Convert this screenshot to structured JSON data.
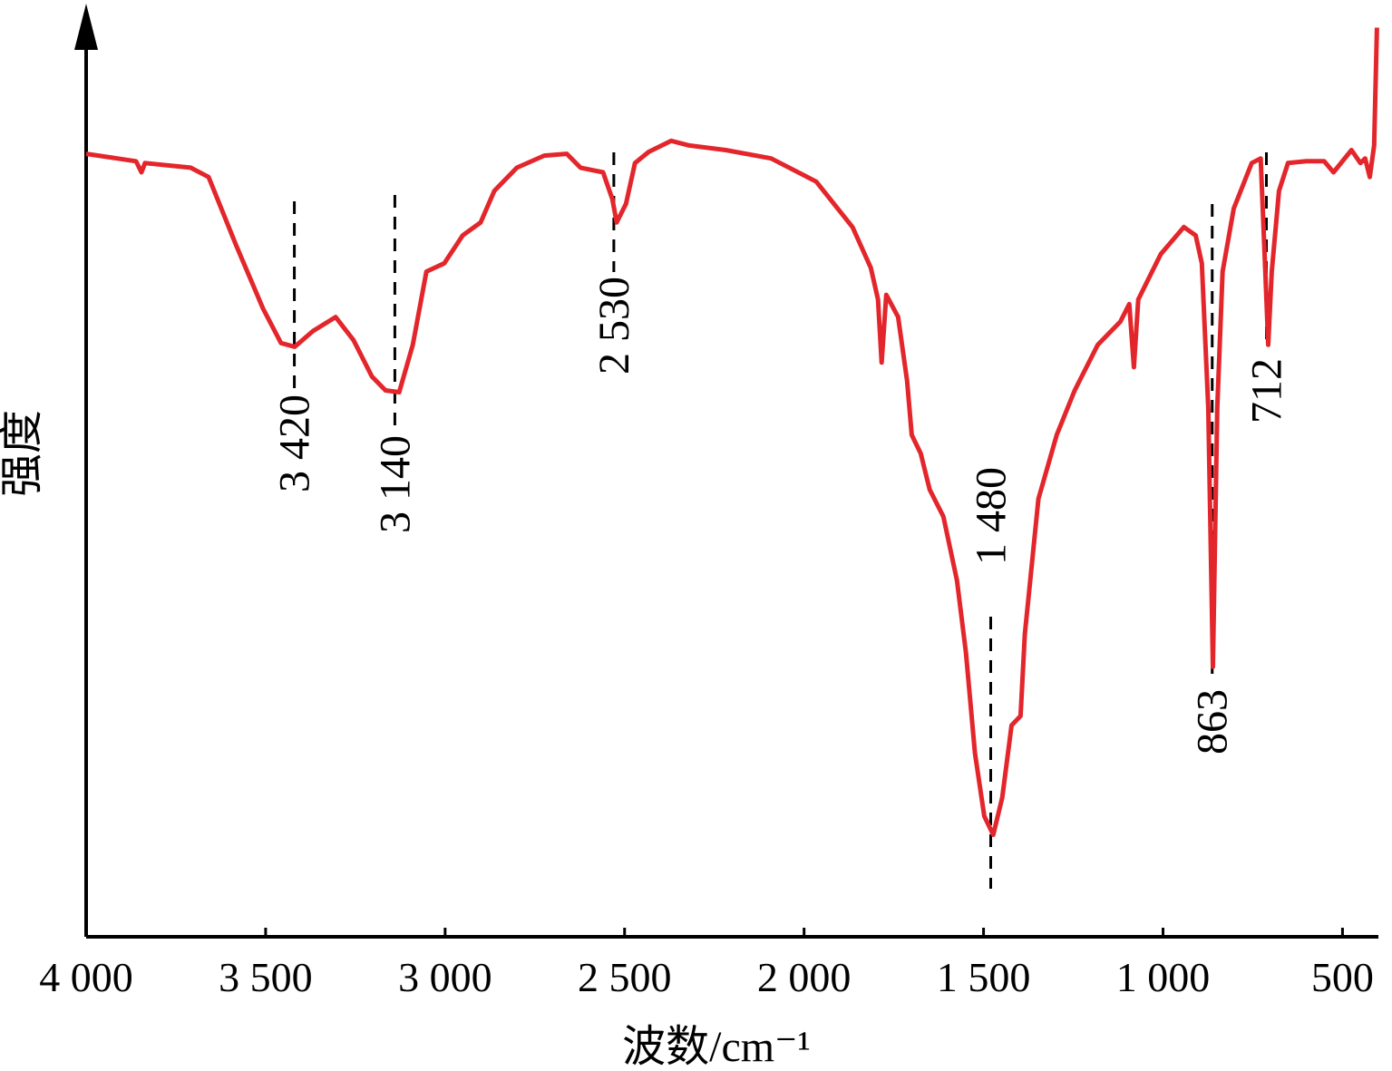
{
  "chart_data": {
    "type": "line",
    "xlabel": "波数/cm⁻¹",
    "ylabel": "强度",
    "xlim": [
      4000,
      400
    ],
    "ylim": [
      0,
      100
    ],
    "xticks": [
      {
        "value": 4000,
        "label": "4 000"
      },
      {
        "value": 3500,
        "label": "3 500"
      },
      {
        "value": 3000,
        "label": "3 000"
      },
      {
        "value": 2500,
        "label": "2 500"
      },
      {
        "value": 2000,
        "label": "2 000"
      },
      {
        "value": 1500,
        "label": "1 500"
      },
      {
        "value": 1000,
        "label": "1 000"
      },
      500
    ],
    "annotations": [
      {
        "value": 3420,
        "label": "3 420"
      },
      {
        "value": 3140,
        "label": "3 140"
      },
      {
        "value": 2530,
        "label": "2 530"
      },
      {
        "value": 1480,
        "label": "1 480"
      },
      863,
      712
    ],
    "series": [
      {
        "color": "#e3262b",
        "x": [
          4000,
          3861,
          3846,
          3836,
          3709,
          3659,
          3634,
          3583,
          3507,
          3457,
          3419,
          3368,
          3305,
          3255,
          3204,
          3166,
          3128,
          3090,
          3052,
          3002,
          2951,
          2901,
          2863,
          2800,
          2724,
          2661,
          2623,
          2560,
          2534,
          2522,
          2496,
          2471,
          2433,
          2370,
          2320,
          2218,
          2092,
          1966,
          1865,
          1814,
          1794,
          1784,
          1771,
          1738,
          1713,
          1700,
          1675,
          1650,
          1612,
          1574,
          1549,
          1524,
          1498,
          1473,
          1448,
          1422,
          1397,
          1385,
          1347,
          1296,
          1246,
          1182,
          1119,
          1094,
          1081,
          1069,
          1006,
          942,
          909,
          892,
          874,
          861,
          849,
          834,
          803,
          753,
          728,
          715,
          707,
          697,
          677,
          652,
          601,
          551,
          525,
          475,
          450,
          437,
          424,
          412,
          404
        ],
        "values": [
          84.4,
          83.6,
          82.4,
          83.4,
          82.9,
          81.9,
          79.5,
          74.6,
          67.7,
          64.0,
          63.6,
          65.3,
          66.8,
          64.3,
          60.4,
          58.9,
          58.7,
          63.8,
          71.7,
          72.6,
          75.6,
          77.0,
          80.4,
          82.9,
          84.2,
          84.4,
          82.9,
          82.4,
          79.5,
          77.0,
          79.0,
          83.4,
          84.6,
          85.8,
          85.3,
          84.8,
          83.9,
          81.4,
          76.5,
          72.1,
          68.7,
          61.9,
          69.2,
          66.8,
          59.9,
          54.1,
          52.1,
          48.2,
          45.3,
          38.4,
          30.6,
          19.8,
          13.0,
          11.0,
          15.0,
          22.8,
          23.8,
          32.6,
          47.2,
          54.1,
          58.9,
          63.8,
          66.3,
          68.2,
          61.4,
          68.7,
          73.6,
          76.5,
          75.6,
          72.6,
          57.0,
          29.1,
          57.0,
          71.7,
          78.5,
          83.4,
          83.9,
          71.7,
          63.8,
          71.7,
          80.4,
          83.4,
          83.6,
          83.6,
          82.4,
          84.8,
          83.4,
          83.9,
          81.9,
          85.3,
          98.0
        ]
      }
    ]
  }
}
